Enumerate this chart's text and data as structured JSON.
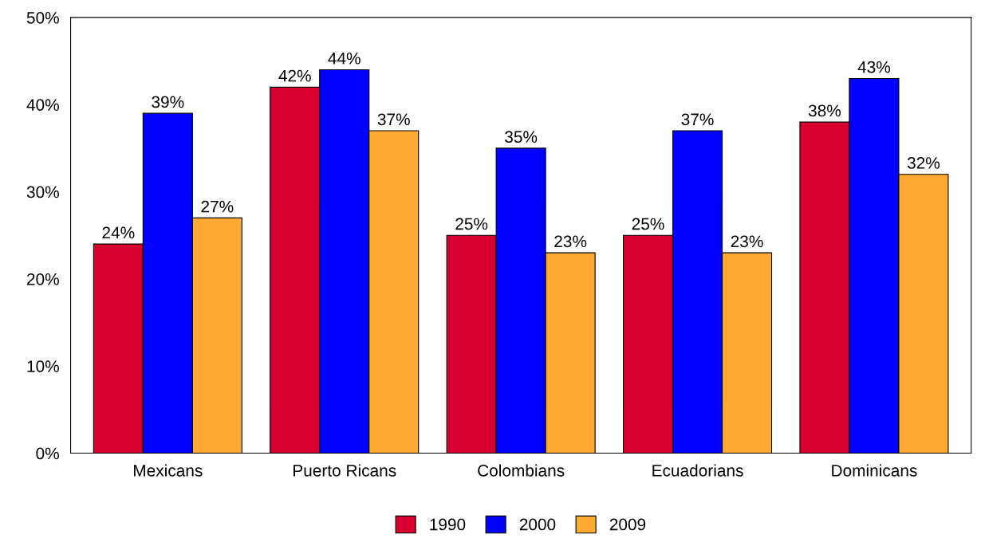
{
  "chart_data": {
    "type": "bar",
    "categories": [
      "Mexicans",
      "Puerto Ricans",
      "Colombians",
      "Ecuadorians",
      "Dominicans"
    ],
    "series": [
      {
        "name": "1990",
        "color": "#d7002e",
        "values": [
          24,
          42,
          25,
          25,
          38
        ],
        "value_labels": [
          "24%",
          "42%",
          "25%",
          "25%",
          "38%"
        ]
      },
      {
        "name": "2000",
        "color": "#0000ff",
        "values": [
          39,
          44,
          35,
          37,
          43
        ],
        "value_labels": [
          "39%",
          "44%",
          "35%",
          "37%",
          "43%"
        ]
      },
      {
        "name": "2009",
        "color": "#ffaa33",
        "values": [
          27,
          37,
          23,
          23,
          32
        ],
        "value_labels": [
          "27%",
          "37%",
          "23%",
          "23%",
          "32%"
        ]
      }
    ],
    "ylim": [
      0,
      50
    ],
    "yticks": [
      {
        "value": 0,
        "label": "0%"
      },
      {
        "value": 10,
        "label": "10%"
      },
      {
        "value": 20,
        "label": "20%"
      },
      {
        "value": 30,
        "label": "30%"
      },
      {
        "value": 40,
        "label": "40%"
      },
      {
        "value": 50,
        "label": "50%"
      }
    ],
    "grid": false,
    "legend": "bottom"
  }
}
